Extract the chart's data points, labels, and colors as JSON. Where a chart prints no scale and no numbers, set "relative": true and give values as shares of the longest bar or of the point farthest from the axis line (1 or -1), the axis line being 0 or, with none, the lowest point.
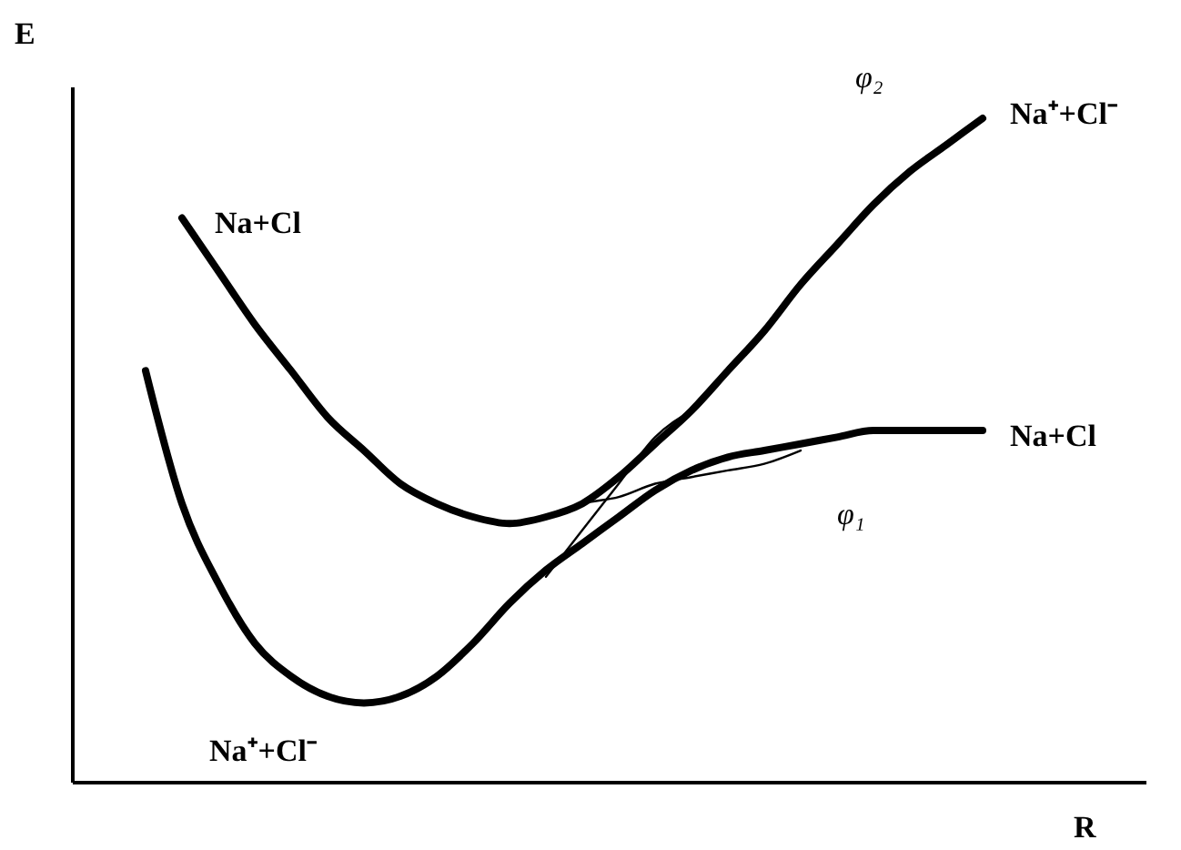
{
  "chart_data": {
    "type": "line",
    "relative": true,
    "xlabel": "R",
    "ylabel": "E",
    "line_style": "solid",
    "categories": [
      null,
      null,
      null,
      null,
      null,
      null,
      null,
      null,
      null,
      null,
      null,
      null,
      null,
      null,
      null,
      null,
      null,
      null,
      null,
      null,
      null,
      null,
      null,
      null,
      null,
      null,
      null,
      null,
      null,
      null
    ],
    "series": [
      {
        "name": "φ₂",
        "color": "#000000",
        "values": [
          null,
          null,
          null,
          0.85,
          0.77,
          0.69,
          0.62,
          0.55,
          0.5,
          0.45,
          0.42,
          0.4,
          0.39,
          0.4,
          0.42,
          0.46,
          0.51,
          0.56,
          0.62,
          0.68,
          0.75,
          0.81,
          0.87,
          0.92,
          0.96,
          1.0,
          null,
          null,
          null,
          null
        ]
      },
      {
        "name": "φ₁",
        "color": "#000000",
        "values": [
          null,
          null,
          0.62,
          0.42,
          0.3,
          0.21,
          0.16,
          0.13,
          0.12,
          0.13,
          0.16,
          0.21,
          0.27,
          0.32,
          0.36,
          0.4,
          0.44,
          0.47,
          0.49,
          0.5,
          0.51,
          0.52,
          0.53,
          0.53,
          0.53,
          0.53,
          null,
          null,
          null,
          null
        ]
      },
      {
        "color": "#000000",
        "values": [
          null,
          null,
          null,
          null,
          null,
          null,
          null,
          null,
          null,
          null,
          null,
          null,
          null,
          0.4,
          0.42,
          0.43,
          0.45,
          0.46,
          0.47,
          0.48,
          0.5,
          null,
          null,
          null,
          null,
          null,
          null,
          null,
          null,
          null
        ]
      },
      {
        "color": "#000000",
        "values": [
          null,
          null,
          null,
          null,
          null,
          null,
          null,
          null,
          null,
          null,
          null,
          null,
          null,
          0.31,
          0.38,
          0.45,
          0.52,
          0.56,
          null,
          null,
          null,
          null,
          null,
          null,
          null,
          null,
          null,
          null,
          null,
          null
        ]
      }
    ],
    "annotations": [
      "Na+Cl",
      "Na⁺+Cl⁻",
      "Na+Cl",
      "Na⁺+Cl⁻"
    ]
  }
}
